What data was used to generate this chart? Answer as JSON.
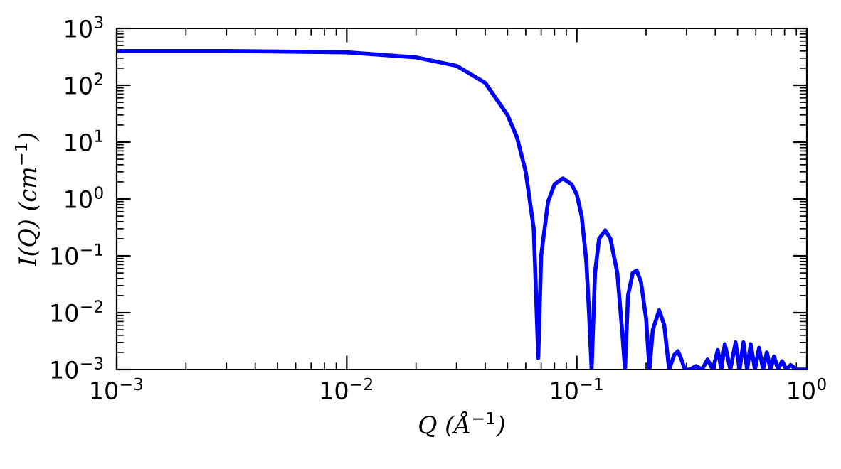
{
  "chart_data": {
    "type": "line",
    "xlabel": "Q (Å$^{−1}$)",
    "ylabel": "I(Q) (cm$^{−1}$)",
    "log": "xy",
    "grid": false,
    "legend": false,
    "marker": "none",
    "line_style": "solid",
    "xlim": [
      0.001,
      1
    ],
    "ylim": [
      0.001,
      1000
    ],
    "xticks": [
      {
        "value": 0.001,
        "label": "10$^{−3}$"
      },
      {
        "value": 0.01,
        "label": "10$^{−2}$"
      },
      {
        "value": 0.1,
        "label": "10$^{−1}$"
      },
      {
        "value": 1,
        "label": "10$^{0}$"
      }
    ],
    "yticks": [
      {
        "value": 0.001,
        "label": "10$^{−3}$"
      },
      {
        "value": 0.01,
        "label": "10$^{−2}$"
      },
      {
        "value": 0.1,
        "label": "10$^{−1}$"
      },
      {
        "value": 1,
        "label": "10$^{0}$"
      },
      {
        "value": 10,
        "label": "10$^{1}$"
      },
      {
        "value": 100,
        "label": "10$^{2}$"
      },
      {
        "value": 1000,
        "label": "10$^{3}$"
      }
    ],
    "series": [
      {
        "color": "#0000ff",
        "x": [
          0.001,
          0.003,
          0.01,
          0.02,
          0.03,
          0.04,
          0.05,
          0.055,
          0.06,
          0.065,
          0.068,
          0.07,
          0.075,
          0.08,
          0.087,
          0.095,
          0.1,
          0.105,
          0.11,
          0.113,
          0.116,
          0.12,
          0.125,
          0.133,
          0.14,
          0.15,
          0.158,
          0.162,
          0.167,
          0.175,
          0.182,
          0.19,
          0.2,
          0.207,
          0.214,
          0.228,
          0.24,
          0.252,
          0.265,
          0.275,
          0.285,
          0.295,
          0.31,
          0.33,
          0.35,
          0.37,
          0.39,
          0.41,
          0.425,
          0.44,
          0.465,
          0.49,
          0.51,
          0.53,
          0.55,
          0.57,
          0.595,
          0.62,
          0.645,
          0.67,
          0.695,
          0.72,
          0.75,
          0.78,
          0.815,
          0.85,
          0.9,
          0.95,
          1.0
        ],
        "values": [
          400,
          400,
          380,
          310,
          220,
          110,
          30,
          12,
          3,
          0.3,
          0.0016,
          0.1,
          0.9,
          1.8,
          2.3,
          1.8,
          1.2,
          0.5,
          0.08,
          0.01,
          0.001,
          0.05,
          0.2,
          0.28,
          0.2,
          0.05,
          0.004,
          0.001,
          0.02,
          0.05,
          0.055,
          0.035,
          0.008,
          0.001,
          0.005,
          0.011,
          0.006,
          0.001,
          0.0018,
          0.0021,
          0.0015,
          0.001,
          0.001,
          0.00115,
          0.001,
          0.0015,
          0.001,
          0.0022,
          0.001,
          0.0028,
          0.001,
          0.003,
          0.001,
          0.003,
          0.001,
          0.0028,
          0.001,
          0.0024,
          0.001,
          0.002,
          0.001,
          0.0017,
          0.001,
          0.0014,
          0.001,
          0.0012,
          0.001,
          0.001,
          0.001
        ]
      }
    ]
  }
}
